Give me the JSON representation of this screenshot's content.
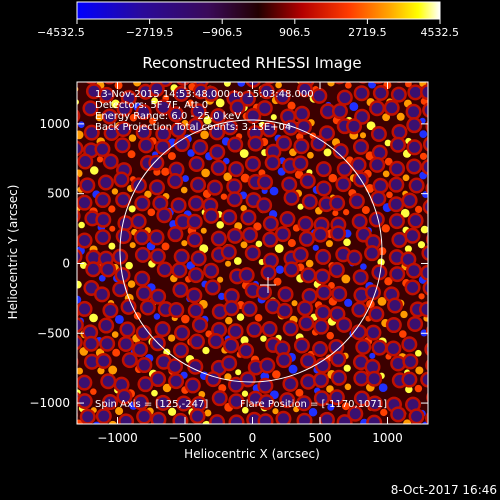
{
  "chart_data": {
    "type": "heatmap",
    "title": "Reconstructed RHESSI Image",
    "xlabel": "Heliocentric X (arcsec)",
    "ylabel": "Heliocentric Y (arcsec)",
    "xlim": [
      -1300,
      1300
    ],
    "ylim": [
      -1150,
      1300
    ],
    "x_ticks": [
      -1000,
      -500,
      0,
      500,
      1000
    ],
    "x_tick_labels": [
      "−1000",
      "−500",
      "0",
      "500",
      "1000"
    ],
    "y_ticks": [
      -1000,
      -500,
      0,
      500,
      1000
    ],
    "y_tick_labels": [
      "−1000",
      "−500",
      "0",
      "500",
      "1000"
    ],
    "colorbar": {
      "min": -4532.5,
      "max": 4532.5,
      "ticks": [
        -4532.5,
        -2719.5,
        -906.5,
        906.5,
        2719.5,
        4532.5
      ],
      "tick_labels": [
        "−4532.5",
        "−2719.5",
        "−906.5",
        "906.5",
        "2719.5",
        "4532.5"
      ],
      "colormap": "blue-purple-red-orange-yellow-white"
    },
    "annotations": [
      "13-Nov-2015 14:53:48.000 to 15:03:48.000",
      "Detectors: 5F 7F, Att 0",
      "Energy Range: 6.0 - 25.0 keV",
      "Back Projection    Total counts: 3.13E+04"
    ],
    "footer_left": "Spin Axis = [125,-247]",
    "footer_right": "Flare Position = [-1170,1071]",
    "solar_limb": {
      "center": [
        0,
        0
      ],
      "radius_arcsec": 970
    },
    "crosshair_position": [
      125,
      -247
    ],
    "grid": false,
    "legend": "none"
  },
  "timestamp": "8-Oct-2017 16:46"
}
